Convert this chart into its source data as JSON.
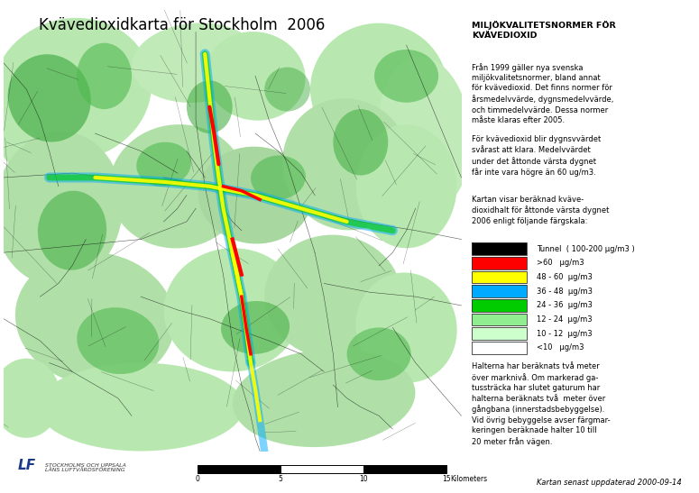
{
  "title": "Kvävedioxidkarta för Stockholm  2006",
  "right_panel_title": "MILJÖKVALITETSNORMER FÖR\nKVÄVEDIOXID",
  "right_panel_para1": "Från 1999 gäller nya svenska\nmiljökvalitetsnormer, bland annat\nför kvävedioxid. Det finns normer för\nårsmedelvvärde, dygnsmedelvvärde,\noch timmedelvvärde. Dessa normer\nmåste klaras efter 2005.",
  "right_panel_para2": "För kvävedioxid blir dygnsvvärdet\nsvårast att klara. Medelvvärdet\nunder det åttonde värsta dygnet\nfår inte vara högre än 60 ug/m3.",
  "right_panel_para3": "Kartan visar beräknad kväve-\ndioxidhalt för åttonde värsta dygnet\n2006 enligt följande färgskala:",
  "legend_items": [
    {
      "color": "#000000",
      "label": "Tunnel  ( 100-200 μg/m3 )",
      "outline": false
    },
    {
      "color": "#ff0000",
      "label": ">60   μg/m3",
      "outline": false
    },
    {
      "color": "#ffff00",
      "label": "48 - 60  μg/m3",
      "outline": false
    },
    {
      "color": "#00aaff",
      "label": "36 - 48  μg/m3",
      "outline": false
    },
    {
      "color": "#00cc00",
      "label": "24 - 36  μg/m3",
      "outline": false
    },
    {
      "color": "#90ee90",
      "label": "12 - 24  μg/m3",
      "outline": false
    },
    {
      "color": "#ccffcc",
      "label": "10 - 12  μg/m3",
      "outline": false
    },
    {
      "color": "#ffffff",
      "label": "<10   μg/m3",
      "outline": true
    }
  ],
  "right_panel_para4": "Halterna har beräknats två meter\növer marknivå. Om markerad ga-\ntussträcka har slutet gaturum har\nhalterna beräknats två  meter över\ngångbana (innerstadsbebyggelse).\nVid övrig bebyggelse avser färgmar-\nkeringen beräknade halter 10 till\n20 meter från vägen.",
  "bottom_date": "Kartan senast uppdaterad 2000-09-14",
  "scale_label": "Kilometers",
  "scale_ticks": [
    0,
    5,
    10,
    15
  ],
  "bg_color": "#ffffff",
  "water_color": "#d0eef5",
  "land_light": "#c8f0c0",
  "land_dark": "#5cb85c",
  "land_mid": "#90d890"
}
